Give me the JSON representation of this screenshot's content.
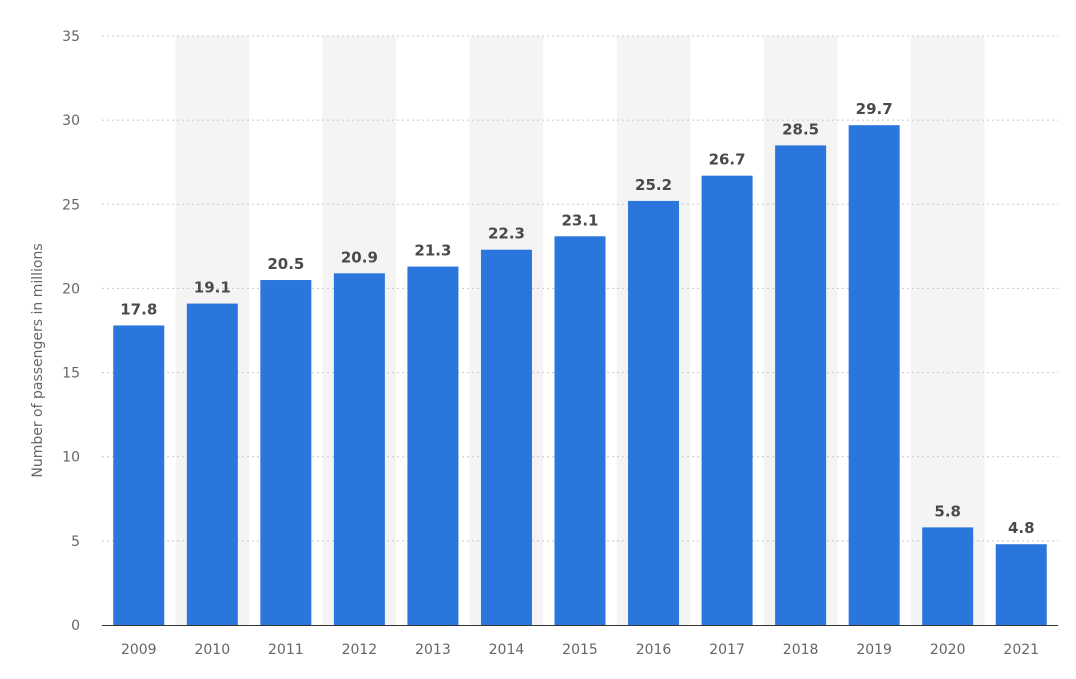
{
  "chart_data": {
    "type": "bar",
    "categories": [
      "2009",
      "2010",
      "2011",
      "2012",
      "2013",
      "2014",
      "2015",
      "2016",
      "2017",
      "2018",
      "2019",
      "2020",
      "2021"
    ],
    "values": [
      17.8,
      19.1,
      20.5,
      20.9,
      21.3,
      22.3,
      23.1,
      25.2,
      26.7,
      28.5,
      29.7,
      5.8,
      4.8
    ],
    "ylabel": "Number of passengers in millions",
    "ylim": [
      0,
      35
    ],
    "yticks": [
      0,
      5,
      10,
      15,
      20,
      25,
      30,
      35
    ],
    "grid": true,
    "bar_color": "#2a76dd",
    "band_color": "#f4f4f4",
    "grid_color": "#c8c8c8"
  }
}
